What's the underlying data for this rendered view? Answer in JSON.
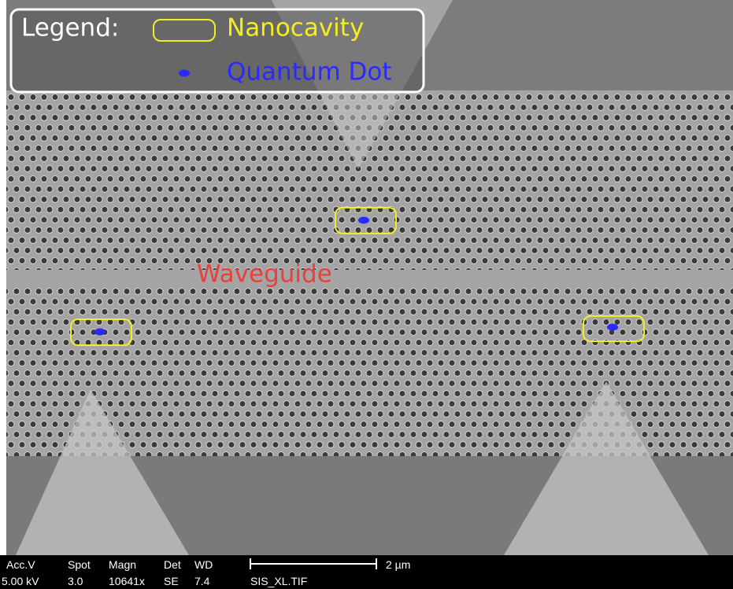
{
  "legend": {
    "title": "Legend:",
    "items": [
      {
        "label": "Nanocavity"
      },
      {
        "label": "Quantum Dot"
      }
    ]
  },
  "annotations": {
    "waveguide": "Waveguide"
  },
  "info_bar": {
    "headers": [
      "Acc.V",
      "Spot",
      "Magn",
      "Det",
      "WD"
    ],
    "values": [
      "5.00 kV",
      "3.0",
      "10641x",
      "SE",
      "7.4"
    ],
    "file": "SIS_XL.TIF"
  },
  "scale_bar": {
    "label": "2 µm"
  }
}
